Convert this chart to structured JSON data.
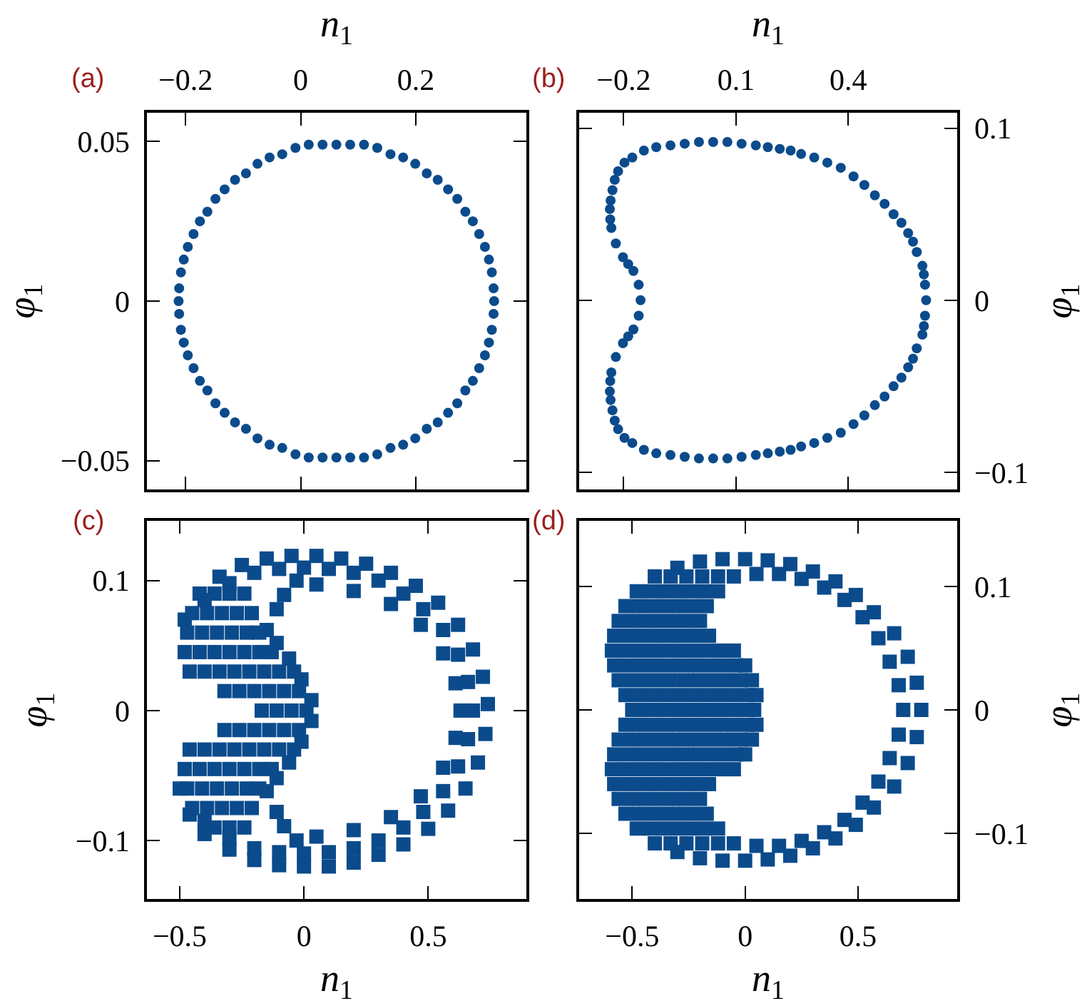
{
  "chart_data": [
    {
      "type": "scatter",
      "marker": "circle",
      "xlabel": "n$_{1}$",
      "xlim": [
        -0.267,
        0.392
      ],
      "xticks": [
        -0.2,
        0,
        0.2
      ],
      "ylabel": "φ$_{1}$",
      "ylim": [
        -0.059,
        0.059
      ],
      "yticks": [
        -0.05,
        0,
        0.05
      ],
      "annotations": [
        "(a)"
      ],
      "series": [
        {
          "color": "#0b4b8c",
          "x": [
            0.336,
            0.335,
            0.332,
            0.327,
            0.32,
            0.31,
            0.299,
            0.286,
            0.272,
            0.256,
            0.238,
            0.219,
            0.199,
            0.178,
            0.156,
            0.133,
            0.11,
            0.086,
            0.062,
            0.038,
            0.014,
            -0.009,
            -0.032,
            -0.054,
            -0.075,
            -0.095,
            -0.114,
            -0.132,
            -0.148,
            -0.162,
            -0.175,
            -0.186,
            -0.196,
            -0.203,
            -0.208,
            -0.211,
            -0.212,
            -0.211,
            -0.208,
            -0.203,
            -0.196,
            -0.186,
            -0.175,
            -0.162,
            -0.148,
            -0.132,
            -0.114,
            -0.095,
            -0.075,
            -0.054,
            -0.032,
            -0.009,
            0.014,
            0.038,
            0.062,
            0.086,
            0.11,
            0.133,
            0.156,
            0.178,
            0.199,
            0.219,
            0.238,
            0.256,
            0.272,
            0.286,
            0.299,
            0.31,
            0.32,
            0.327,
            0.332,
            0.335
          ],
          "values": [
            0,
            0.004,
            0.009,
            0.013,
            0.017,
            0.021,
            0.025,
            0.028,
            0.032,
            0.035,
            0.038,
            0.04,
            0.043,
            0.045,
            0.046,
            0.048,
            0.049,
            0.049,
            0.049,
            0.049,
            0.049,
            0.048,
            0.046,
            0.045,
            0.043,
            0.04,
            0.038,
            0.035,
            0.032,
            0.028,
            0.025,
            0.021,
            0.017,
            0.013,
            0.009,
            0.004,
            0,
            -0.004,
            -0.009,
            -0.013,
            -0.017,
            -0.021,
            -0.025,
            -0.028,
            -0.032,
            -0.035,
            -0.038,
            -0.04,
            -0.043,
            -0.045,
            -0.046,
            -0.048,
            -0.049,
            -0.049,
            -0.049,
            -0.049,
            -0.049,
            -0.048,
            -0.046,
            -0.045,
            -0.043,
            -0.04,
            -0.038,
            -0.035,
            -0.032,
            -0.028,
            -0.025,
            -0.021,
            -0.017,
            -0.013,
            -0.009,
            -0.004
          ]
        }
      ]
    },
    {
      "type": "scatter",
      "marker": "circle",
      "xlabel": "n$_{1}$",
      "xlim": [
        -0.319,
        0.691
      ],
      "xticks": [
        -0.2,
        0.1,
        0.4
      ],
      "y2label": "φ$_{1}$",
      "y2lim": [
        -0.11,
        0.109
      ],
      "y2ticks": [
        -0.1,
        0,
        0.1
      ],
      "annotations": [
        "(b)"
      ],
      "series": [
        {
          "color": "#0b4b8c",
          "axis": "y2",
          "x": [
            0.608,
            0.605,
            0.602,
            0.598,
            0.583,
            0.573,
            0.56,
            0.542,
            0.521,
            0.497,
            0.471,
            0.443,
            0.414,
            0.38,
            0.344,
            0.309,
            0.274,
            0.246,
            0.217,
            0.185,
            0.153,
            0.115,
            0.077,
            0.039,
            0.001,
            -0.037,
            -0.075,
            -0.113,
            -0.146,
            -0.177,
            -0.198,
            -0.215,
            -0.224,
            -0.23,
            -0.235,
            -0.237,
            -0.236,
            -0.233,
            -0.221,
            -0.202,
            -0.188,
            -0.174,
            -0.16,
            -0.155,
            -0.16,
            -0.174,
            -0.188,
            -0.202,
            -0.221,
            -0.233,
            -0.236,
            -0.237,
            -0.235,
            -0.23,
            -0.224,
            -0.215,
            -0.198,
            -0.177,
            -0.146,
            -0.113,
            -0.075,
            -0.037,
            0.001,
            0.039,
            0.077,
            0.115,
            0.153,
            0.185,
            0.217,
            0.246,
            0.274,
            0.309,
            0.344,
            0.38,
            0.414,
            0.443,
            0.471,
            0.497,
            0.521,
            0.542,
            0.56,
            0.573,
            0.583,
            0.598,
            0.602,
            0.605
          ],
          "values": [
            0,
            0.009,
            0.015,
            0.02,
            0.028,
            0.034,
            0.039,
            0.045,
            0.05,
            0.056,
            0.061,
            0.067,
            0.072,
            0.077,
            0.08,
            0.083,
            0.085,
            0.087,
            0.088,
            0.089,
            0.09,
            0.091,
            0.092,
            0.092,
            0.092,
            0.091,
            0.09,
            0.089,
            0.087,
            0.083,
            0.08,
            0.075,
            0.07,
            0.064,
            0.058,
            0.053,
            0.047,
            0.042,
            0.033,
            0.025,
            0.021,
            0.017,
            0.009,
            0,
            -0.009,
            -0.017,
            -0.021,
            -0.025,
            -0.033,
            -0.042,
            -0.047,
            -0.053,
            -0.058,
            -0.064,
            -0.07,
            -0.075,
            -0.08,
            -0.083,
            -0.087,
            -0.089,
            -0.09,
            -0.091,
            -0.092,
            -0.092,
            -0.092,
            -0.091,
            -0.09,
            -0.089,
            -0.088,
            -0.087,
            -0.085,
            -0.083,
            -0.08,
            -0.077,
            -0.072,
            -0.067,
            -0.061,
            -0.056,
            -0.05,
            -0.045,
            -0.039,
            -0.034,
            -0.028,
            -0.02,
            -0.015,
            -0.009
          ]
        }
      ]
    },
    {
      "type": "scatter",
      "marker": "square",
      "xlabel": "n$_{1}$",
      "xlim": [
        -0.632,
        0.895
      ],
      "xticks": [
        -0.5,
        0,
        0.5
      ],
      "ylabel": "φ$_{1}$",
      "ylim": [
        -0.145,
        0.146
      ],
      "yticks": [
        -0.1,
        0,
        0.1
      ],
      "annotations": [
        "(c)"
      ],
      "series": [
        {
          "color": "#0b4b8c",
          "x": [
            -0.48,
            -0.42,
            -0.34,
            -0.25,
            -0.15,
            -0.05,
            0.05,
            0.15,
            0.25,
            0.35,
            0.45,
            0.54,
            0.62,
            0.68,
            0.72,
            0.74,
            0.73,
            0.7,
            0.65,
            0.58,
            0.5,
            0.4,
            0.3,
            0.2,
            0.1,
            0,
            -0.1,
            -0.2,
            -0.3,
            -0.4,
            -0.46,
            -0.5,
            -0.4,
            -0.3,
            -0.2,
            -0.1,
            0,
            0.1,
            0.2,
            0.3,
            0.4,
            0.48,
            0.56,
            0.62,
            0.66,
            0.68,
            0.66,
            0.62,
            0.56,
            0.48,
            0.4,
            0.3,
            0.2,
            0.1,
            0,
            -0.1,
            -0.2,
            -0.3,
            -0.4,
            0.05,
            0.2,
            0.35,
            0.47,
            0.56,
            0.61,
            0.63,
            0.61,
            0.56,
            0.47,
            0.35,
            0.2,
            0.05,
            -0.15,
            -0.11,
            -0.08,
            -0.03,
            -0.11,
            -0.06,
            -0.01,
            0.03,
            -0.11,
            -0.06,
            -0.01,
            0.03,
            -0.15,
            -0.11,
            -0.08,
            -0.03,
            -0.36,
            -0.3,
            -0.24,
            -0.45,
            -0.39,
            -0.33,
            -0.27,
            -0.21,
            -0.47,
            -0.41,
            -0.35,
            -0.29,
            -0.23,
            -0.18,
            -0.48,
            -0.42,
            -0.36,
            -0.3,
            -0.24,
            -0.18,
            -0.13,
            -0.46,
            -0.4,
            -0.34,
            -0.28,
            -0.22,
            -0.16,
            -0.1,
            -0.04,
            -0.32,
            -0.26,
            -0.2,
            -0.14,
            -0.08,
            -0.02,
            -0.17,
            -0.11,
            -0.05,
            0.01,
            -0.32,
            -0.26,
            -0.2,
            -0.14,
            -0.08,
            -0.02,
            -0.46,
            -0.4,
            -0.34,
            -0.28,
            -0.22,
            -0.16,
            -0.1,
            -0.04,
            -0.48,
            -0.42,
            -0.36,
            -0.3,
            -0.24,
            -0.18,
            -0.13,
            -0.47,
            -0.41,
            -0.35,
            -0.29,
            -0.23,
            -0.18,
            -0.45,
            -0.39,
            -0.33,
            -0.27,
            -0.21,
            -0.36,
            -0.3,
            -0.24
          ],
          "values": [
            0.07,
            0.09,
            0.103,
            0.112,
            0.117,
            0.119,
            0.119,
            0.117,
            0.113,
            0.106,
            0.096,
            0.083,
            0.066,
            0.047,
            0.026,
            0.005,
            -0.018,
            -0.04,
            -0.06,
            -0.077,
            -0.091,
            -0.103,
            -0.111,
            -0.117,
            -0.12,
            -0.12,
            -0.119,
            -0.115,
            -0.107,
            -0.095,
            -0.08,
            -0.06,
            0.085,
            0.098,
            0.106,
            0.109,
            0.11,
            0.109,
            0.106,
            0.1,
            0.09,
            0.078,
            0.062,
            0.043,
            0.022,
            0,
            -0.022,
            -0.043,
            -0.062,
            -0.078,
            -0.09,
            -0.1,
            -0.106,
            -0.109,
            -0.11,
            -0.109,
            -0.106,
            -0.098,
            -0.085,
            0.097,
            0.092,
            0.082,
            0.066,
            0.044,
            0.021,
            0,
            -0.021,
            -0.044,
            -0.066,
            -0.082,
            -0.092,
            -0.097,
            0.062,
            0.078,
            0.089,
            0.1,
            0.052,
            0.04,
            0.024,
            0.008,
            -0.052,
            -0.04,
            -0.024,
            -0.008,
            -0.062,
            -0.078,
            -0.089,
            -0.1,
            0.09,
            0.09,
            0.09,
            0.075,
            0.075,
            0.075,
            0.075,
            0.075,
            0.06,
            0.06,
            0.06,
            0.06,
            0.06,
            0.06,
            0.045,
            0.045,
            0.045,
            0.045,
            0.045,
            0.045,
            0.045,
            0.03,
            0.03,
            0.03,
            0.03,
            0.03,
            0.03,
            0.03,
            0.03,
            0.015,
            0.015,
            0.015,
            0.015,
            0.015,
            0.015,
            0,
            0,
            0,
            0,
            -0.015,
            -0.015,
            -0.015,
            -0.015,
            -0.015,
            -0.015,
            -0.03,
            -0.03,
            -0.03,
            -0.03,
            -0.03,
            -0.03,
            -0.03,
            -0.03,
            -0.045,
            -0.045,
            -0.045,
            -0.045,
            -0.045,
            -0.045,
            -0.045,
            -0.06,
            -0.06,
            -0.06,
            -0.06,
            -0.06,
            -0.06,
            -0.075,
            -0.075,
            -0.075,
            -0.075,
            -0.075,
            -0.09,
            -0.09,
            -0.09
          ]
        }
      ]
    },
    {
      "type": "scatter",
      "marker": "square",
      "xlabel": "n$_{1}$",
      "xlim": [
        -0.735,
        0.939
      ],
      "xticks": [
        -0.5,
        0,
        0.5
      ],
      "y2label": "φ$_{1}$",
      "y2lim": [
        -0.153,
        0.153
      ],
      "y2ticks": [
        -0.1,
        0,
        0.1
      ],
      "annotations": [
        "(d)"
      ],
      "series": [
        {
          "color": "#0b4b8c",
          "axis": "y2",
          "x": [
            -0.3,
            -0.2,
            -0.1,
            0,
            0.1,
            0.2,
            0.3,
            0.4,
            0.49,
            0.57,
            0.66,
            0.72,
            0.76,
            0.78,
            0.76,
            0.72,
            0.66,
            0.57,
            0.49,
            0.4,
            0.3,
            0.2,
            0.1,
            0,
            -0.1,
            -0.2,
            -0.3,
            -0.05,
            0.05,
            0.15,
            0.25,
            0.35,
            0.44,
            0.52,
            0.59,
            0.64,
            0.68,
            0.7,
            0.68,
            0.64,
            0.59,
            0.52,
            0.44,
            0.35,
            0.25,
            0.15,
            0.05,
            -0.05,
            -0.4,
            -0.33,
            -0.26,
            -0.19,
            -0.12,
            -0.48,
            -0.42,
            -0.36,
            -0.3,
            -0.24,
            -0.18,
            -0.12,
            -0.53,
            -0.47,
            -0.41,
            -0.35,
            -0.29,
            -0.23,
            -0.17,
            -0.56,
            -0.5,
            -0.44,
            -0.38,
            -0.32,
            -0.26,
            -0.2,
            -0.58,
            -0.52,
            -0.46,
            -0.4,
            -0.34,
            -0.28,
            -0.22,
            -0.16,
            -0.59,
            -0.53,
            -0.47,
            -0.41,
            -0.35,
            -0.29,
            -0.23,
            -0.17,
            -0.11,
            -0.05,
            -0.58,
            -0.52,
            -0.46,
            -0.4,
            -0.34,
            -0.28,
            -0.22,
            -0.16,
            -0.1,
            -0.04,
            0,
            -0.56,
            -0.5,
            -0.44,
            -0.38,
            -0.32,
            -0.26,
            -0.2,
            -0.14,
            -0.08,
            -0.02,
            0.03,
            -0.53,
            -0.47,
            -0.41,
            -0.35,
            -0.29,
            -0.23,
            -0.17,
            -0.11,
            -0.05,
            0.01,
            0.05,
            -0.5,
            -0.44,
            -0.38,
            -0.32,
            -0.26,
            -0.2,
            -0.14,
            -0.08,
            -0.02,
            0.04,
            -0.53,
            -0.47,
            -0.41,
            -0.35,
            -0.29,
            -0.23,
            -0.17,
            -0.11,
            -0.05,
            0.01,
            0.05,
            -0.56,
            -0.5,
            -0.44,
            -0.38,
            -0.32,
            -0.26,
            -0.2,
            -0.14,
            -0.08,
            -0.02,
            0.03,
            -0.58,
            -0.52,
            -0.46,
            -0.4,
            -0.34,
            -0.28,
            -0.22,
            -0.16,
            -0.1,
            -0.04,
            0,
            -0.59,
            -0.53,
            -0.47,
            -0.41,
            -0.35,
            -0.29,
            -0.23,
            -0.17,
            -0.11,
            -0.05,
            -0.58,
            -0.52,
            -0.46,
            -0.4,
            -0.34,
            -0.28,
            -0.22,
            -0.16,
            -0.56,
            -0.5,
            -0.44,
            -0.38,
            -0.32,
            -0.26,
            -0.2,
            -0.53,
            -0.47,
            -0.41,
            -0.35,
            -0.29,
            -0.23,
            -0.17,
            -0.48,
            -0.42,
            -0.36,
            -0.3,
            -0.24,
            -0.18,
            -0.12,
            -0.4,
            -0.33,
            -0.26,
            -0.19,
            -0.12
          ],
          "values": [
            0.115,
            0.12,
            0.122,
            0.122,
            0.121,
            0.118,
            0.112,
            0.104,
            0.093,
            0.079,
            0.062,
            0.043,
            0.022,
            0,
            -0.022,
            -0.043,
            -0.062,
            -0.079,
            -0.093,
            -0.104,
            -0.112,
            -0.118,
            -0.121,
            -0.122,
            -0.122,
            -0.12,
            -0.115,
            0.108,
            0.11,
            0.11,
            0.106,
            0.099,
            0.089,
            0.075,
            0.058,
            0.039,
            0.02,
            0,
            -0.02,
            -0.039,
            -0.058,
            -0.075,
            -0.089,
            -0.099,
            -0.106,
            -0.11,
            -0.11,
            -0.108,
            0.108,
            0.108,
            0.108,
            0.108,
            0.108,
            0.096,
            0.096,
            0.096,
            0.096,
            0.096,
            0.096,
            0.096,
            0.084,
            0.084,
            0.084,
            0.084,
            0.084,
            0.084,
            0.084,
            0.072,
            0.072,
            0.072,
            0.072,
            0.072,
            0.072,
            0.072,
            0.06,
            0.06,
            0.06,
            0.06,
            0.06,
            0.06,
            0.06,
            0.06,
            0.048,
            0.048,
            0.048,
            0.048,
            0.048,
            0.048,
            0.048,
            0.048,
            0.048,
            0.048,
            0.036,
            0.036,
            0.036,
            0.036,
            0.036,
            0.036,
            0.036,
            0.036,
            0.036,
            0.036,
            0.036,
            0.024,
            0.024,
            0.024,
            0.024,
            0.024,
            0.024,
            0.024,
            0.024,
            0.024,
            0.024,
            0.024,
            0.012,
            0.012,
            0.012,
            0.012,
            0.012,
            0.012,
            0.012,
            0.012,
            0.012,
            0.012,
            0.012,
            0,
            0,
            0,
            0,
            0,
            0,
            0,
            0,
            0,
            0,
            -0.012,
            -0.012,
            -0.012,
            -0.012,
            -0.012,
            -0.012,
            -0.012,
            -0.012,
            -0.012,
            -0.012,
            -0.012,
            -0.024,
            -0.024,
            -0.024,
            -0.024,
            -0.024,
            -0.024,
            -0.024,
            -0.024,
            -0.024,
            -0.024,
            -0.024,
            -0.036,
            -0.036,
            -0.036,
            -0.036,
            -0.036,
            -0.036,
            -0.036,
            -0.036,
            -0.036,
            -0.036,
            -0.036,
            -0.048,
            -0.048,
            -0.048,
            -0.048,
            -0.048,
            -0.048,
            -0.048,
            -0.048,
            -0.048,
            -0.048,
            -0.06,
            -0.06,
            -0.06,
            -0.06,
            -0.06,
            -0.06,
            -0.06,
            -0.06,
            -0.072,
            -0.072,
            -0.072,
            -0.072,
            -0.072,
            -0.072,
            -0.072,
            -0.084,
            -0.084,
            -0.084,
            -0.084,
            -0.084,
            -0.084,
            -0.084,
            -0.096,
            -0.096,
            -0.096,
            -0.096,
            -0.096,
            -0.096,
            -0.096,
            -0.108,
            -0.108,
            -0.108,
            -0.108,
            -0.108
          ]
        }
      ]
    }
  ]
}
